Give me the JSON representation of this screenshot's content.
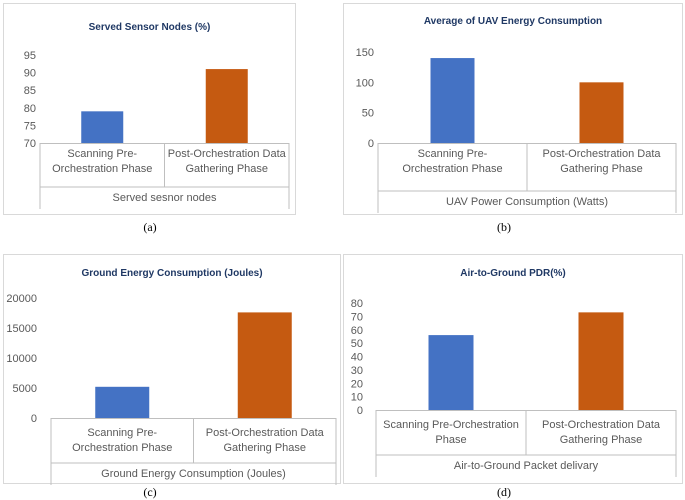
{
  "colors": {
    "blue": "#4472c4",
    "orange": "#c55a11",
    "title": "#1f3864",
    "text": "#595959",
    "axis": "#bfbfbf"
  },
  "chart_data": [
    {
      "type": "bar",
      "title": "Served Sensor Nodes (%)",
      "categories": [
        [
          "Scanning Pre-",
          "Orchestration Phase"
        ],
        [
          "Post-Orchestration Data",
          "Gathering Phase"
        ]
      ],
      "values": [
        79,
        91
      ],
      "ylim": [
        70,
        95
      ],
      "yticks": [
        70,
        75,
        80,
        85,
        90,
        95
      ],
      "xlabel": "Served sesnor nodes",
      "caption": "(a)"
    },
    {
      "type": "bar",
      "title": "Average of UAV Energy Consumption",
      "categories": [
        [
          "Scanning Pre-",
          "Orchestration Phase"
        ],
        [
          "Post-Orchestration Data",
          "Gathering Phase"
        ]
      ],
      "values": [
        140,
        100
      ],
      "ylim": [
        0,
        150
      ],
      "yticks": [
        0,
        50,
        100,
        150
      ],
      "xlabel": "UAV Power Consumption (Watts)",
      "caption": "(b)"
    },
    {
      "type": "bar",
      "title": "Ground Energy Consumption (Joules)",
      "categories": [
        [
          "Scanning Pre-",
          "Orchestration Phase"
        ],
        [
          "Post-Orchestration Data",
          "Gathering Phase"
        ]
      ],
      "values": [
        5200,
        17600
      ],
      "ylim": [
        0,
        20000
      ],
      "yticks": [
        0,
        5000,
        10000,
        15000,
        20000
      ],
      "xlabel": "Ground Energy Consumption (Joules)",
      "caption": "(c)"
    },
    {
      "type": "bar",
      "title": "Air-to-Ground PDR(%)",
      "categories": [
        [
          "Scanning Pre-Orchestration",
          "Phase"
        ],
        [
          "Post-Orchestration Data",
          "Gathering Phase"
        ]
      ],
      "values": [
        56,
        73
      ],
      "ylim": [
        0,
        80
      ],
      "yticks": [
        0,
        10,
        20,
        30,
        40,
        50,
        60,
        70,
        80
      ],
      "xlabel": "Air-to-Ground Packet delivary",
      "caption": "(d)"
    }
  ]
}
